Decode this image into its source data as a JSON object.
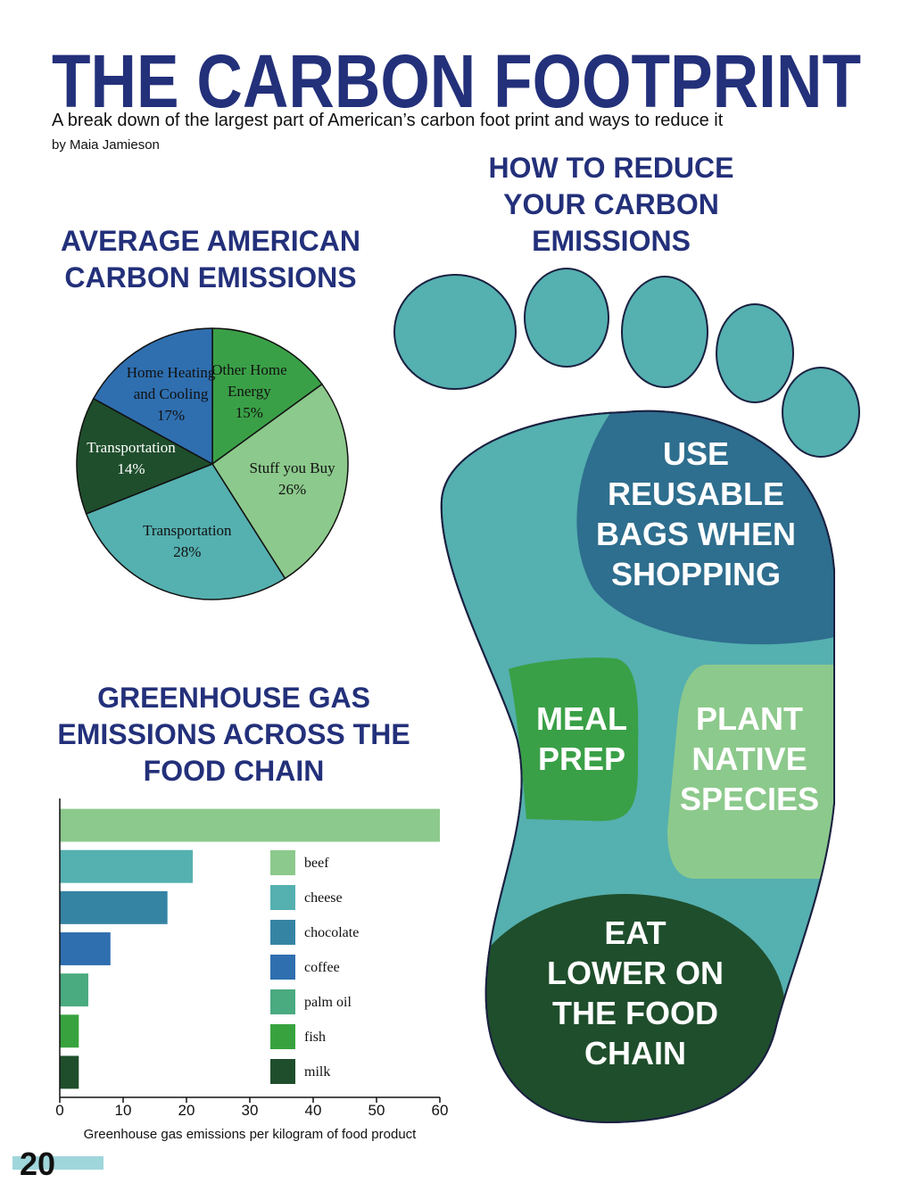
{
  "header": {
    "title": "THE CARBON FOOTPRINT",
    "subtitle": "A break down of the largest part of American’s carbon foot print and ways to reduce it",
    "byline": "by Maia Jamieson"
  },
  "footprint": {
    "title": "HOW TO REDUCE YOUR CARBON EMISSIONS",
    "tips": [
      [
        "USE",
        "REUSABLE",
        "BAGS WHEN",
        "SHOPPING"
      ],
      [
        "MEAL",
        "PREP"
      ],
      [
        "PLANT",
        "NATIVE",
        "SPECIES"
      ],
      [
        "EAT",
        "LOWER ON",
        "THE FOOD",
        "CHAIN"
      ]
    ]
  },
  "page_number": "20",
  "chart_data": [
    {
      "type": "pie",
      "title": "AVERAGE AMERICAN CARBON EMISSIONS",
      "categories": [
        "Other Home Energy",
        "Stuff you Buy",
        "Transportation",
        "Transportation",
        "Home Heating and Cooling"
      ],
      "values": [
        15,
        26,
        28,
        14,
        17
      ],
      "value_labels": [
        "15%",
        "26%",
        "28%",
        "14%",
        "17%"
      ],
      "colors": [
        "#3aa047",
        "#8cc98c",
        "#55b0b0",
        "#1f4e2c",
        "#2f6fb0"
      ]
    },
    {
      "type": "bar",
      "orientation": "horizontal",
      "title": "GREENHOUSE GAS EMISSIONS ACROSS THE FOOD CHAIN",
      "categories": [
        "beef",
        "cheese",
        "chocolate",
        "coffee",
        "palm oil",
        "fish",
        "milk"
      ],
      "values": [
        60,
        21,
        17,
        8,
        4.5,
        3,
        3
      ],
      "colors": [
        "#8cc98c",
        "#55b0b0",
        "#3684a4",
        "#2f6fb0",
        "#4aaa80",
        "#38a33e",
        "#1f4e2c"
      ],
      "xlim": [
        0,
        60
      ],
      "xticks": [
        0,
        10,
        20,
        30,
        40,
        50,
        60
      ],
      "xlabel": "Greenhouse gas emissions per kilogram of food product",
      "legend": true
    }
  ]
}
